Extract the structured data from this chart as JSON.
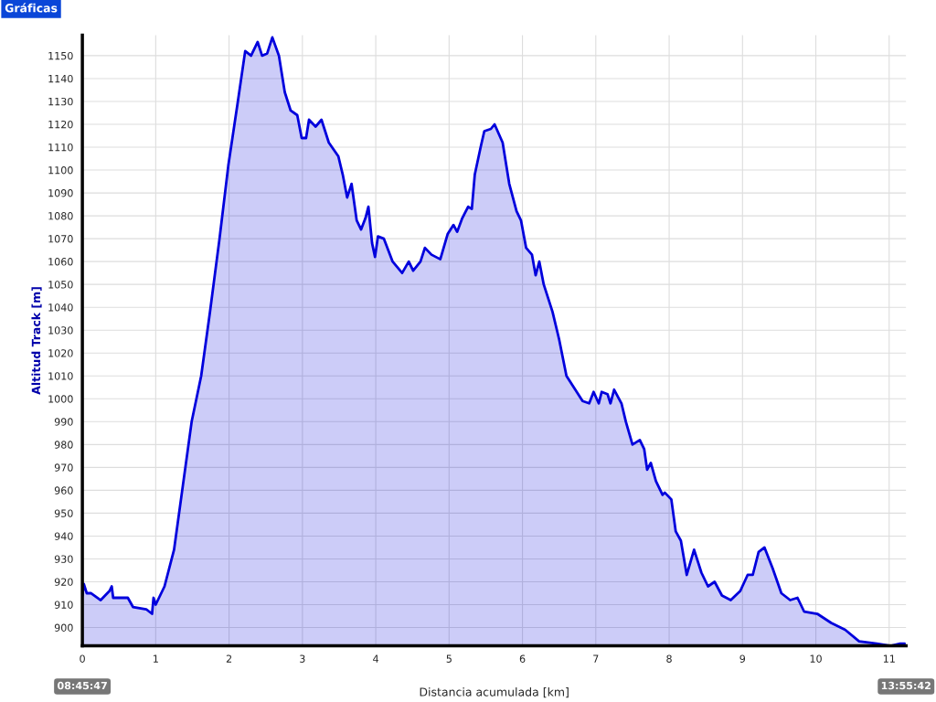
{
  "chart_data": {
    "type": "area",
    "title": "Gráficas",
    "xlabel": "Distancia acumulada [km]",
    "ylabel": "Altitud Track [m]",
    "x": [
      0,
      0.02,
      0.06,
      0.12,
      0.25,
      0.37,
      0.4,
      0.42,
      0.62,
      0.69,
      0.87,
      0.95,
      0.97,
      1.0,
      1.12,
      1.25,
      1.37,
      1.49,
      1.62,
      1.74,
      1.87,
      1.99,
      2.12,
      2.22,
      2.3,
      2.39,
      2.45,
      2.52,
      2.59,
      2.68,
      2.76,
      2.84,
      2.93,
      2.99,
      3.05,
      3.09,
      3.18,
      3.26,
      3.36,
      3.49,
      3.55,
      3.61,
      3.67,
      3.74,
      3.8,
      3.86,
      3.9,
      3.95,
      3.99,
      4.03,
      4.11,
      4.23,
      4.36,
      4.45,
      4.51,
      4.61,
      4.67,
      4.76,
      4.88,
      4.98,
      5.06,
      5.11,
      5.18,
      5.26,
      5.31,
      5.35,
      5.43,
      5.48,
      5.57,
      5.62,
      5.73,
      5.82,
      5.92,
      5.98,
      6.05,
      6.13,
      6.18,
      6.23,
      6.29,
      6.41,
      6.5,
      6.6,
      6.72,
      6.82,
      6.91,
      6.97,
      7.04,
      7.08,
      7.16,
      7.2,
      7.25,
      7.35,
      7.41,
      7.5,
      7.6,
      7.66,
      7.7,
      7.75,
      7.82,
      7.91,
      7.94,
      8.03,
      8.09,
      8.16,
      8.24,
      8.34,
      8.44,
      8.53,
      8.62,
      8.72,
      8.84,
      8.97,
      9.07,
      9.14,
      9.22,
      9.3,
      9.41,
      9.53,
      9.65,
      9.75,
      9.84,
      10.02,
      10.21,
      10.4,
      10.59,
      10.83,
      11.02,
      11.15,
      11.21
    ],
    "series": [
      {
        "color": "#0000dd",
        "values": [
          914,
          919,
          915,
          915,
          912,
          916,
          918,
          913,
          913,
          909,
          908,
          906,
          913,
          910,
          918,
          934,
          962,
          990,
          1010,
          1038,
          1070,
          1102,
          1130,
          1152,
          1150,
          1156,
          1150,
          1151,
          1158,
          1150,
          1134,
          1126,
          1124,
          1114,
          1114,
          1122,
          1119,
          1122,
          1112,
          1106,
          1098,
          1088,
          1094,
          1078,
          1074,
          1079,
          1084,
          1068,
          1062,
          1071,
          1070,
          1060,
          1055,
          1060,
          1056,
          1060,
          1066,
          1063,
          1061,
          1072,
          1076,
          1073,
          1079,
          1084,
          1083,
          1098,
          1110,
          1117,
          1118,
          1120,
          1112,
          1094,
          1082,
          1078,
          1066,
          1063,
          1054,
          1060,
          1050,
          1038,
          1026,
          1010,
          1004,
          999,
          998,
          1003,
          998,
          1003,
          1002,
          998,
          1004,
          998,
          990,
          980,
          982,
          978,
          969,
          972,
          964,
          958,
          959,
          956,
          942,
          938,
          923,
          934,
          924,
          918,
          920,
          914,
          912,
          916,
          923,
          923,
          933,
          935,
          926,
          915,
          912,
          913,
          907,
          906,
          902,
          899,
          894,
          893,
          892,
          893,
          893
        ]
      }
    ],
    "xlim": [
      0,
      11.23
    ],
    "ylim": [
      892,
      1159
    ],
    "xticks": [
      0,
      1,
      2,
      3,
      4,
      5,
      6,
      7,
      8,
      9,
      10,
      11
    ],
    "yticks": [
      900,
      910,
      920,
      930,
      940,
      950,
      960,
      970,
      980,
      990,
      1000,
      1010,
      1020,
      1030,
      1040,
      1050,
      1060,
      1070,
      1080,
      1090,
      1100,
      1110,
      1120,
      1130,
      1140,
      1150
    ],
    "grid": true,
    "annotations": [
      "08:45:47",
      "13:55:42"
    ]
  }
}
